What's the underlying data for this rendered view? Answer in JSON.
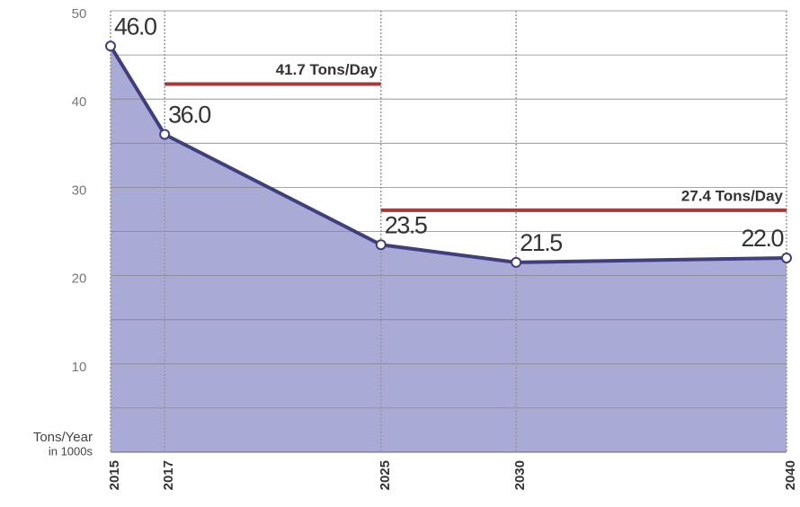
{
  "chart_data": {
    "type": "area",
    "x": [
      2015,
      2017,
      2025,
      2030,
      2040
    ],
    "values": [
      46,
      36,
      23.5,
      21.5,
      22
    ],
    "value_labels": [
      "46.0",
      "36.0",
      "23.5",
      "21.5",
      "22.0"
    ],
    "xlim": [
      2015,
      2040
    ],
    "xticks": [
      2015,
      2017,
      2025,
      2030,
      2040
    ],
    "ylim": [
      0,
      50
    ],
    "yticks": [
      10,
      20,
      30,
      40,
      50
    ],
    "minor_yticks": [
      5,
      15,
      25,
      35,
      45
    ],
    "ylabel": [
      "Tons/Year",
      "in 1000s"
    ],
    "line_color": "#3f3f7f",
    "fill_color": "#aaaad6",
    "grid": true,
    "annotations": [
      {
        "label": "41.7 Tons/Day",
        "y": 41.7,
        "x": [
          2017,
          2025
        ],
        "color": "#a83a3a"
      },
      {
        "label": "27.4 Tons/Day",
        "y": 27.4,
        "x": [
          2025,
          2040
        ],
        "color": "#a83a3a"
      }
    ]
  }
}
